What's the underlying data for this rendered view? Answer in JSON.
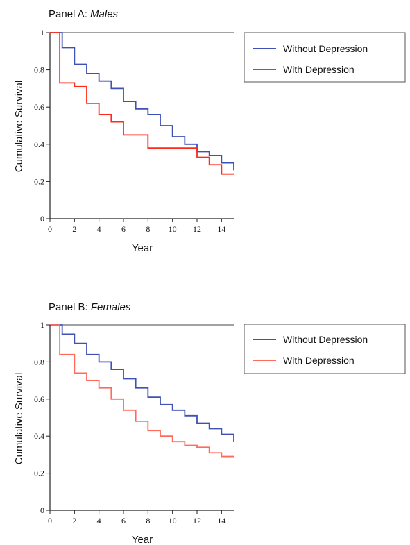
{
  "chart_data": [
    {
      "type": "line",
      "step": true,
      "title_prefix": "Panel A: ",
      "title_italic": "Males",
      "xlabel": "Year",
      "ylabel": "Cumulative Survival",
      "xlim": [
        0,
        15
      ],
      "ylim": [
        0,
        1
      ],
      "xticks": [
        0,
        2,
        4,
        6,
        8,
        10,
        12,
        14
      ],
      "yticks": [
        0,
        0.2,
        0.4,
        0.6,
        0.8,
        1
      ],
      "xtick_labels": [
        "0",
        "2",
        "4",
        "6",
        "8",
        "10",
        "12",
        "14"
      ],
      "ytick_labels": [
        "0",
        "0.2",
        "0.4",
        "0.6",
        "0.8",
        "1"
      ],
      "grid": false,
      "legend_position": "right",
      "series": [
        {
          "name": "Without Depression",
          "color": "#3f51b5",
          "x": [
            0,
            1,
            2,
            3,
            4,
            5,
            6,
            7,
            8,
            9,
            10,
            11,
            12,
            13,
            14,
            15
          ],
          "y": [
            1.0,
            0.92,
            0.83,
            0.78,
            0.74,
            0.7,
            0.63,
            0.59,
            0.56,
            0.5,
            0.44,
            0.4,
            0.36,
            0.34,
            0.3,
            0.26
          ]
        },
        {
          "name": "With Depression",
          "color": "#ff2a1a",
          "x": [
            0,
            0.8,
            2,
            3,
            4,
            5,
            6,
            8,
            12,
            13,
            14,
            15
          ],
          "y": [
            1.0,
            0.73,
            0.71,
            0.62,
            0.56,
            0.52,
            0.45,
            0.38,
            0.33,
            0.29,
            0.24,
            0.24
          ]
        }
      ]
    },
    {
      "type": "line",
      "step": true,
      "title_prefix": "Panel B: ",
      "title_italic": "Females",
      "xlabel": "Year",
      "ylabel": "Cumulative Survival",
      "xlim": [
        0,
        15
      ],
      "ylim": [
        0,
        1
      ],
      "xticks": [
        0,
        2,
        4,
        6,
        8,
        10,
        12,
        14
      ],
      "yticks": [
        0,
        0.2,
        0.4,
        0.6,
        0.8,
        1
      ],
      "xtick_labels": [
        "0",
        "2",
        "4",
        "6",
        "8",
        "10",
        "12",
        "14"
      ],
      "ytick_labels": [
        "0",
        "0.2",
        "0.4",
        "0.6",
        "0.8",
        "1"
      ],
      "grid": false,
      "legend_position": "right",
      "series": [
        {
          "name": "Without Depression",
          "color": "#3f51b5",
          "x": [
            0,
            1,
            2,
            3,
            4,
            5,
            6,
            7,
            8,
            9,
            10,
            11,
            12,
            13,
            14,
            15
          ],
          "y": [
            1.0,
            0.95,
            0.9,
            0.84,
            0.8,
            0.76,
            0.71,
            0.66,
            0.61,
            0.57,
            0.54,
            0.51,
            0.47,
            0.44,
            0.41,
            0.37
          ]
        },
        {
          "name": "With Depression",
          "color": "#ff6a5a",
          "x": [
            0,
            0.8,
            2,
            3,
            4,
            5,
            6,
            7,
            8,
            9,
            10,
            11,
            12,
            13,
            14,
            15
          ],
          "y": [
            1.0,
            0.84,
            0.74,
            0.7,
            0.66,
            0.6,
            0.54,
            0.48,
            0.43,
            0.4,
            0.37,
            0.35,
            0.34,
            0.31,
            0.29,
            0.29
          ]
        }
      ]
    }
  ]
}
